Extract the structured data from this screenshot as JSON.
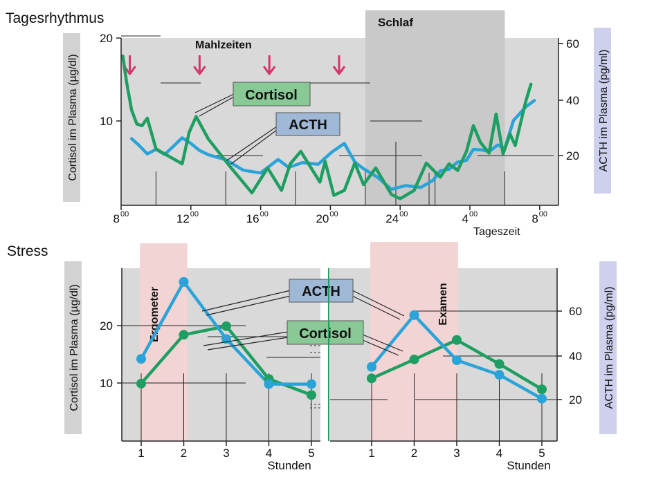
{
  "colors": {
    "cortisol": "#1f9e62",
    "acth": "#2aa3d8",
    "panel": "#d9d9d9",
    "sleep": "#c9c9c9",
    "stress": "#f2d4d4",
    "arrow": "#d6336c",
    "cortisol_label_bg": "#88c995",
    "acth_label_bg": "#9fb8d6",
    "left_axis_label_bg": "#d2d2d2",
    "right_axis_label_bg": "#cfd0ee"
  },
  "top": {
    "title": "Tagesrhythmus",
    "sleep_label": "Schlaf",
    "meals_label": "Mahlzeiten",
    "left_axis_label": "Cortisol im Plasma (µg/dl)",
    "right_axis_label": "ACTH im Plasma (pg/ml)",
    "xlabel": "Tageszeit",
    "cortisol_label": "Cortisol",
    "acth_label": "ACTH",
    "left_ticks": [
      "20",
      "10"
    ],
    "right_ticks": [
      "60",
      "40",
      "20"
    ],
    "x_ticks": [
      {
        "base": "8",
        "sup": "00"
      },
      {
        "base": "12",
        "sup": "00"
      },
      {
        "base": "16",
        "sup": "00"
      },
      {
        "base": "20",
        "sup": "00"
      },
      {
        "base": "24",
        "sup": "00"
      },
      {
        "base": "4",
        "sup": "00"
      },
      {
        "base": "8",
        "sup": "00"
      }
    ]
  },
  "bottom": {
    "title": "Stress",
    "left_axis_label": "Cortisol im Plasma (µg/dl)",
    "right_axis_label": "ACTH im Plasma (pg/ml)",
    "ergometer_label": "Ergometer",
    "examen_label": "Examen",
    "acth_label": "ACTH",
    "cortisol_label": "Cortisol",
    "left_ticks": [
      "20",
      "10"
    ],
    "right_ticks": [
      "60",
      "40",
      "20"
    ],
    "x_ticks_left": [
      "1",
      "2",
      "3",
      "4",
      "5"
    ],
    "x_ticks_right": [
      "1",
      "2",
      "3",
      "4",
      "5"
    ],
    "xlabel_left": "Stunden",
    "xlabel_right": "Stunden"
  },
  "chart_data": [
    {
      "type": "line",
      "title": "Tagesrhythmus",
      "xlabel": "Tageszeit",
      "ylabel": "Cortisol im Plasma (µg/dl)",
      "y2label": "ACTH im Plasma (pg/ml)",
      "xlim": [
        8,
        33
      ],
      "ylim": [
        0,
        20
      ],
      "y2lim": [
        0,
        60
      ],
      "meal_times": [
        8.5,
        12.5,
        16.5,
        20.5
      ],
      "sleep_interval": [
        22,
        30
      ],
      "series": [
        {
          "name": "Cortisol",
          "axis": "left",
          "x": [
            8.1,
            8.3,
            8.6,
            8.9,
            9.2,
            9.5,
            10.0,
            11.0,
            11.5,
            11.9,
            12.3,
            13.0,
            14.2,
            15.5,
            16.4,
            17.2,
            17.7,
            18.3,
            19.4,
            19.7,
            20.2,
            20.8,
            21.4,
            21.9,
            22.6,
            23.5,
            24.0,
            24.8,
            25.5,
            26.3,
            26.8,
            27.3,
            27.8,
            28.2,
            28.6,
            29.1,
            29.5,
            29.9,
            30.3,
            30.6,
            31.2,
            31.5
          ],
          "y": [
            18.0,
            15.0,
            11.5,
            9.8,
            9.6,
            10.5,
            6.8,
            5.6,
            5.0,
            8.8,
            10.7,
            8.0,
            4.8,
            1.5,
            4.5,
            1.8,
            5.0,
            6.5,
            2.8,
            5.3,
            1.2,
            1.8,
            5.1,
            2.5,
            4.5,
            1.3,
            0.8,
            1.8,
            5.1,
            3.4,
            5.0,
            4.2,
            6.5,
            9.6,
            7.6,
            6.3,
            11.0,
            6.2,
            8.6,
            7.2,
            12.5,
            14.6
          ]
        },
        {
          "name": "ACTH",
          "axis": "right",
          "x": [
            8.6,
            9.0,
            9.5,
            10.0,
            10.5,
            11.0,
            11.5,
            12.0,
            12.5,
            13.0,
            14.0,
            15.0,
            16.0,
            17.0,
            17.6,
            18.4,
            19.3,
            20.1,
            20.8,
            21.4,
            21.9,
            22.7,
            23.5,
            24.3,
            25.2,
            25.9,
            26.3,
            26.8,
            27.3,
            27.8,
            28.2,
            28.7,
            29.1,
            29.6,
            30.0,
            30.5,
            31.2,
            31.7
          ],
          "y": [
            23.7,
            21.5,
            18.3,
            19.9,
            18.1,
            21.0,
            24.0,
            22.0,
            19.5,
            18.0,
            16.2,
            12.5,
            11.5,
            16.3,
            13.5,
            15.2,
            14.6,
            19.0,
            22.0,
            15.4,
            13.0,
            10.0,
            5.7,
            7.0,
            6.4,
            9.0,
            12.3,
            12.8,
            15.4,
            16.0,
            19.9,
            19.7,
            19.1,
            21.5,
            20.2,
            30.2,
            35.0,
            37.3
          ]
        }
      ]
    },
    {
      "type": "line",
      "title": "Stress — Ergometer",
      "xlabel": "Stunden",
      "ylabel": "Cortisol im Plasma (µg/dl)",
      "y2label": "ACTH im Plasma (pg/ml)",
      "xlim": [
        0.5,
        5.5
      ],
      "ylim": [
        0,
        28
      ],
      "y2lim": [
        0,
        84
      ],
      "stress_interval": [
        1.0,
        2.05
      ],
      "series": [
        {
          "name": "ACTH",
          "axis": "right",
          "x": [
            1,
            2,
            3,
            4,
            5
          ],
          "y": [
            38.4,
            73.2,
            47.4,
            27.0,
            27.0
          ]
        },
        {
          "name": "Cortisol",
          "axis": "left",
          "x": [
            1,
            2,
            3,
            4,
            5
          ],
          "y": [
            9.9,
            18.4,
            19.9,
            10.7,
            7.9
          ]
        }
      ]
    },
    {
      "type": "line",
      "title": "Stress — Examen",
      "xlabel": "Stunden",
      "ylabel": "Cortisol im Plasma (µg/dl)",
      "y2label": "ACTH im Plasma (pg/ml)",
      "xlim": [
        0.5,
        5.5
      ],
      "ylim": [
        0,
        28
      ],
      "y2lim": [
        0,
        84
      ],
      "stress_interval": [
        1.0,
        3.0
      ],
      "series": [
        {
          "name": "ACTH",
          "axis": "right",
          "x": [
            1,
            2,
            3,
            4,
            5
          ],
          "y": [
            34.8,
            58.2,
            37.8,
            31.2,
            20.4
          ]
        },
        {
          "name": "Cortisol",
          "axis": "left",
          "x": [
            1,
            2,
            3,
            4,
            5
          ],
          "y": [
            10.8,
            14.1,
            17.5,
            13.3,
            8.9
          ]
        }
      ]
    }
  ]
}
